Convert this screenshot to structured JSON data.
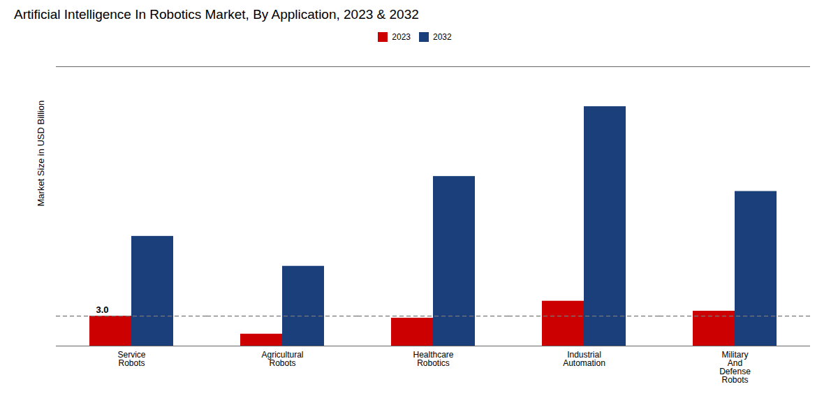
{
  "chart_data": {
    "type": "bar",
    "title": "Artificial Intelligence In Robotics Market, By Application, 2023 & 2032",
    "ylabel": "Market Size in USD Billion",
    "categories": [
      "Service\nRobots",
      "Agricultural\nRobots",
      "Healthcare\nRobotics",
      "Industrial\nAutomation",
      "Military\nAnd\nDefense\nRobots"
    ],
    "series": [
      {
        "name": "2023",
        "color": "#cc0000",
        "values": [
          3.0,
          1.2,
          2.8,
          4.5,
          3.5
        ]
      },
      {
        "name": "2032",
        "color": "#1a3f7a",
        "values": [
          11.0,
          8.0,
          17.0,
          24.0,
          15.5
        ]
      }
    ],
    "ylim": [
      0,
      28
    ],
    "yticks": [],
    "tick_labels": "x",
    "grid": false,
    "legend": "top",
    "reference_line": {
      "y": 3.0,
      "color": "#777777",
      "line_style": "dashed"
    },
    "annotations": [
      {
        "text": "3.0",
        "x": "Service\nRobots",
        "series": "2023",
        "y": 3.0
      }
    ]
  }
}
